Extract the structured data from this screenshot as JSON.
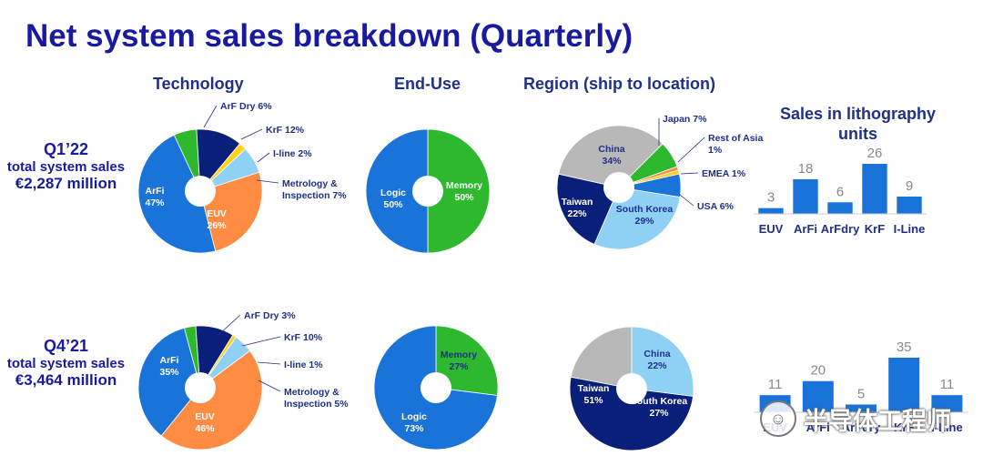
{
  "title": "Net system sales breakdown (Quarterly)",
  "columns": {
    "technology": "Technology",
    "end_use": "End-Use",
    "region": "Region (ship to location)",
    "litho": "Sales in lithography units"
  },
  "rows": [
    {
      "quarter": "Q1’22",
      "label": "total system sales",
      "value": "€2,287 million"
    },
    {
      "quarter": "Q4’21",
      "label": "total system sales",
      "value": "€3,464 million"
    }
  ],
  "colors": {
    "arfi": "#1a73d9",
    "euv": "#ff8c42",
    "arfdry": "#2eb82e",
    "krf": "#0a1f7a",
    "iline": "#ffd11a",
    "metrology": "#8fd0f5",
    "logic": "#1a73d9",
    "memory": "#2eb82e",
    "china": "#b8b8b8",
    "japan": "#2eb82e",
    "restasia": "#ff8c42",
    "emea": "#ffd11a",
    "usa": "#1a73d9",
    "korea": "#8fd0f5",
    "taiwan": "#0a1f7a",
    "bar": "#1a73d9",
    "title": "#1a1a9e"
  },
  "watermark": "半导体工程师",
  "chart_data": [
    {
      "type": "pie",
      "group": "Technology",
      "quarter": "Q1’22",
      "slices": [
        {
          "label": "ArF Dry",
          "value": 6,
          "key": "arfdry",
          "text": "ArF Dry 6%"
        },
        {
          "label": "KrF",
          "value": 12,
          "key": "krf",
          "text": "KrF 12%"
        },
        {
          "label": "I-line",
          "value": 2,
          "key": "iline",
          "text": "I-line 2%"
        },
        {
          "label": "Metrology & Inspection",
          "value": 7,
          "key": "metrology",
          "text": "Metrology & Inspection 7%"
        },
        {
          "label": "EUV",
          "value": 26,
          "key": "euv",
          "text": "EUV 26%"
        },
        {
          "label": "ArFi",
          "value": 47,
          "key": "arfi",
          "text": "ArFi 47%"
        }
      ]
    },
    {
      "type": "pie",
      "group": "End-Use",
      "quarter": "Q1’22",
      "slices": [
        {
          "label": "Memory",
          "value": 50,
          "key": "memory",
          "text": "Memory 50%"
        },
        {
          "label": "Logic",
          "value": 50,
          "key": "logic",
          "text": "Logic 50%"
        }
      ]
    },
    {
      "type": "pie",
      "group": "Region (ship to location)",
      "quarter": "Q1’22",
      "slices": [
        {
          "label": "Japan",
          "value": 7,
          "key": "japan",
          "text": "Japan 7%"
        },
        {
          "label": "Rest of Asia",
          "value": 1,
          "key": "restasia",
          "text": "Rest of Asia 1%"
        },
        {
          "label": "EMEA",
          "value": 1,
          "key": "emea",
          "text": "EMEA 1%"
        },
        {
          "label": "USA",
          "value": 6,
          "key": "usa",
          "text": "USA 6%"
        },
        {
          "label": "South Korea",
          "value": 29,
          "key": "korea",
          "text": "South Korea 29%"
        },
        {
          "label": "Taiwan",
          "value": 22,
          "key": "taiwan",
          "text": "Taiwan 22%"
        },
        {
          "label": "China",
          "value": 34,
          "key": "china",
          "text": "China 34%"
        }
      ]
    },
    {
      "type": "bar",
      "group": "Sales in lithography units",
      "quarter": "Q1’22",
      "categories": [
        "EUV",
        "ArFi",
        "ArFdry",
        "KrF",
        "I-Line"
      ],
      "values": [
        3,
        18,
        6,
        26,
        9
      ]
    },
    {
      "type": "pie",
      "group": "Technology",
      "quarter": "Q4’21",
      "slices": [
        {
          "label": "ArF Dry",
          "value": 3,
          "key": "arfdry",
          "text": "ArF Dry 3%"
        },
        {
          "label": "KrF",
          "value": 10,
          "key": "krf",
          "text": "KrF 10%"
        },
        {
          "label": "I-line",
          "value": 1,
          "key": "iline",
          "text": "I-line 1%"
        },
        {
          "label": "Metrology & Inspection",
          "value": 5,
          "key": "metrology",
          "text": "Metrology & Inspection 5%"
        },
        {
          "label": "EUV",
          "value": 46,
          "key": "euv",
          "text": "EUV 46%"
        },
        {
          "label": "ArFi",
          "value": 35,
          "key": "arfi",
          "text": "ArFi 35%"
        }
      ]
    },
    {
      "type": "pie",
      "group": "End-Use",
      "quarter": "Q4’21",
      "slices": [
        {
          "label": "Memory",
          "value": 27,
          "key": "memory",
          "text": "Memory 27%"
        },
        {
          "label": "Logic",
          "value": 73,
          "key": "logic",
          "text": "Logic 73%"
        }
      ]
    },
    {
      "type": "pie",
      "group": "Region (ship to location)",
      "quarter": "Q4’21",
      "slices": [
        {
          "label": "South Korea",
          "value": 27,
          "key": "korea",
          "text": "South Korea 27%"
        },
        {
          "label": "Taiwan",
          "value": 51,
          "key": "taiwan",
          "text": "Taiwan 51%"
        },
        {
          "label": "China",
          "value": 22,
          "key": "china",
          "text": "China 22%"
        }
      ]
    },
    {
      "type": "bar",
      "group": "Sales in lithography units",
      "quarter": "Q4’21",
      "categories": [
        "EUV",
        "ArFi",
        "ArFdry",
        "KrF",
        "I-Line"
      ],
      "values": [
        11,
        20,
        5,
        35,
        11
      ]
    }
  ]
}
